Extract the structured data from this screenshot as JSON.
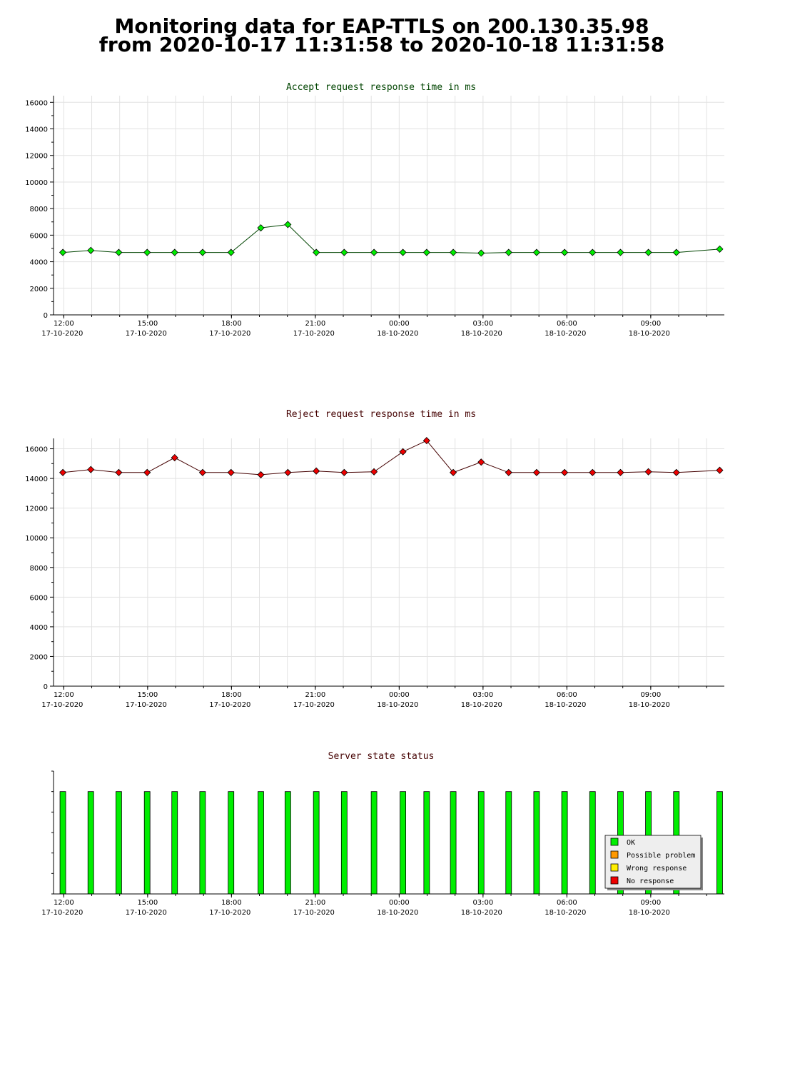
{
  "header": {
    "line1": "Monitoring data for EAP-TTLS on 200.130.35.98",
    "line2": "from 2020-10-17 11:31:58 to 2020-10-18 11:31:58"
  },
  "colors": {
    "accept": "#00ee00",
    "reject": "#ee0000",
    "status_ok": "#00ee00",
    "possible_problem": "#ff9900",
    "wrong_response": "#ffee00",
    "no_response": "#ee0000",
    "accept_title": "#004400",
    "reject_title": "#440000"
  },
  "time_ticks": [
    {
      "time": "12:00",
      "date": "17-10-2020"
    },
    {
      "time": "15:00",
      "date": "17-10-2020"
    },
    {
      "time": "18:00",
      "date": "17-10-2020"
    },
    {
      "time": "21:00",
      "date": "17-10-2020"
    },
    {
      "time": "00:00",
      "date": "18-10-2020"
    },
    {
      "time": "03:00",
      "date": "18-10-2020"
    },
    {
      "time": "06:00",
      "date": "18-10-2020"
    },
    {
      "time": "09:00",
      "date": "18-10-2020"
    }
  ],
  "chart_data": [
    {
      "type": "line",
      "title": "Accept request response time in ms",
      "xlabel": "",
      "ylabel": "",
      "xlim": [
        "2020-10-17 11:38",
        "2020-10-18 11:38"
      ],
      "ylim": [
        0,
        16500
      ],
      "yticks": [
        0,
        2000,
        4000,
        6000,
        8000,
        10000,
        12000,
        14000,
        16000
      ],
      "grid": true,
      "x": [
        "2020-10-17 11:58",
        "2020-10-17 12:58",
        "2020-10-17 13:58",
        "2020-10-17 14:59",
        "2020-10-17 15:58",
        "2020-10-17 16:58",
        "2020-10-17 17:59",
        "2020-10-17 19:03",
        "2020-10-17 20:01",
        "2020-10-17 21:02",
        "2020-10-17 22:02",
        "2020-10-17 23:06",
        "2020-10-18 00:08",
        "2020-10-18 00:59",
        "2020-10-18 01:56",
        "2020-10-18 02:56",
        "2020-10-18 03:55",
        "2020-10-18 04:55",
        "2020-10-18 05:55",
        "2020-10-18 06:55",
        "2020-10-18 07:55",
        "2020-10-18 08:55",
        "2020-10-18 09:55",
        "2020-10-18 11:28"
      ],
      "values": [
        4700,
        4850,
        4700,
        4700,
        4700,
        4700,
        4700,
        6550,
        6800,
        4700,
        4700,
        4700,
        4700,
        4700,
        4700,
        4650,
        4700,
        4700,
        4700,
        4700,
        4700,
        4700,
        4700,
        4950
      ]
    },
    {
      "type": "line",
      "title": "Reject request response time in ms",
      "xlabel": "",
      "ylabel": "",
      "xlim": [
        "2020-10-17 11:38",
        "2020-10-18 11:38"
      ],
      "ylim": [
        0,
        16700
      ],
      "yticks": [
        0,
        2000,
        4000,
        6000,
        8000,
        10000,
        12000,
        14000,
        16000
      ],
      "grid": true,
      "x": [
        "2020-10-17 11:58",
        "2020-10-17 12:58",
        "2020-10-17 13:58",
        "2020-10-17 14:59",
        "2020-10-17 15:58",
        "2020-10-17 16:58",
        "2020-10-17 17:59",
        "2020-10-17 19:03",
        "2020-10-17 20:01",
        "2020-10-17 21:02",
        "2020-10-17 22:02",
        "2020-10-17 23:06",
        "2020-10-18 00:08",
        "2020-10-18 00:59",
        "2020-10-18 01:56",
        "2020-10-18 02:56",
        "2020-10-18 03:55",
        "2020-10-18 04:55",
        "2020-10-18 05:55",
        "2020-10-18 06:55",
        "2020-10-18 07:55",
        "2020-10-18 08:55",
        "2020-10-18 09:55",
        "2020-10-18 11:28"
      ],
      "values": [
        14400,
        14600,
        14400,
        14400,
        15400,
        14400,
        14400,
        14250,
        14400,
        14500,
        14400,
        14450,
        15800,
        16550,
        14400,
        15100,
        14400,
        14400,
        14400,
        14400,
        14400,
        14450,
        14400,
        14550
      ]
    },
    {
      "type": "bar",
      "title": "Server state status",
      "xlabel": "",
      "ylabel": "",
      "xlim": [
        "2020-10-17 11:38",
        "2020-10-18 11:38"
      ],
      "grid": false,
      "legend_position": "bottom-right",
      "legend": [
        "OK",
        "Possible problem",
        "Wrong response",
        "No response"
      ],
      "x": [
        "2020-10-17 11:58",
        "2020-10-17 12:58",
        "2020-10-17 13:58",
        "2020-10-17 14:59",
        "2020-10-17 15:58",
        "2020-10-17 16:58",
        "2020-10-17 17:59",
        "2020-10-17 19:03",
        "2020-10-17 20:01",
        "2020-10-17 21:02",
        "2020-10-17 22:02",
        "2020-10-17 23:06",
        "2020-10-18 00:08",
        "2020-10-18 00:59",
        "2020-10-18 01:56",
        "2020-10-18 02:56",
        "2020-10-18 03:55",
        "2020-10-18 04:55",
        "2020-10-18 05:55",
        "2020-10-18 06:55",
        "2020-10-18 07:55",
        "2020-10-18 08:55",
        "2020-10-18 09:55",
        "2020-10-18 11:28"
      ],
      "states": [
        "OK",
        "OK",
        "OK",
        "OK",
        "OK",
        "OK",
        "OK",
        "OK",
        "OK",
        "OK",
        "OK",
        "OK",
        "OK",
        "OK",
        "OK",
        "OK",
        "OK",
        "OK",
        "OK",
        "OK",
        "OK",
        "OK",
        "OK",
        "OK"
      ]
    }
  ]
}
